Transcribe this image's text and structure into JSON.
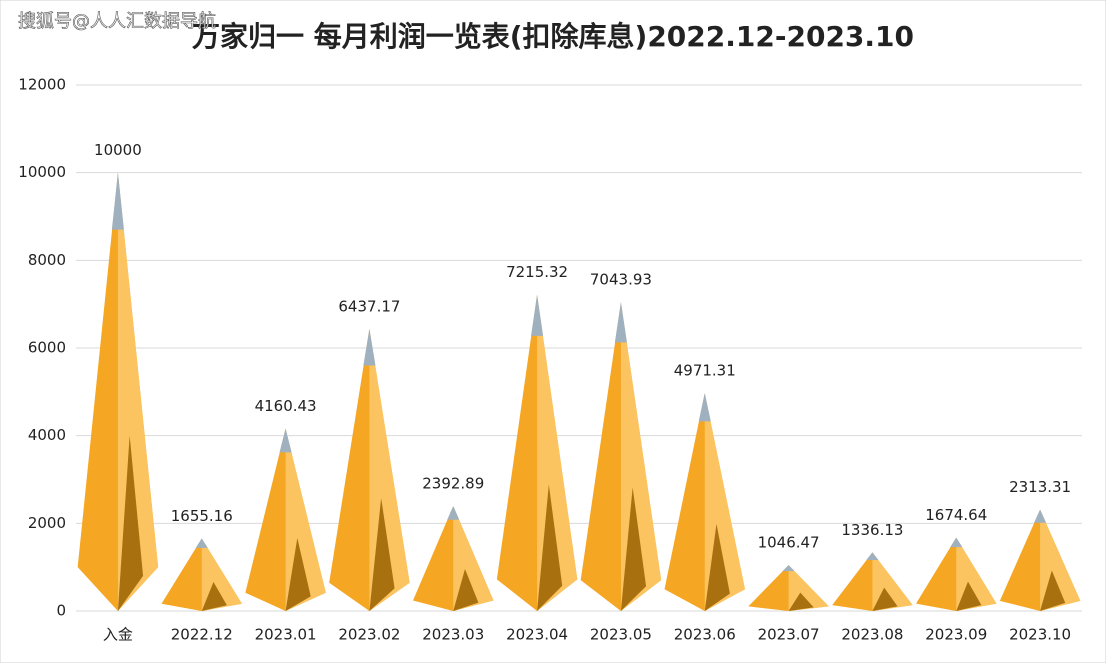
{
  "watermark": "搜狐号@人人汇数据导航",
  "chart_data": {
    "type": "pyramid",
    "title": "万家归一 每月利润一览表(扣除库息)2022.12-2023.10",
    "categories": [
      "入金",
      "2022.12",
      "2023.01",
      "2023.02",
      "2023.03",
      "2023.04",
      "2023.05",
      "2023.06",
      "2023.07",
      "2023.08",
      "2023.09",
      "2023.10"
    ],
    "values": [
      10000,
      1655.16,
      4160.43,
      6437.17,
      2392.89,
      7215.32,
      7043.93,
      4971.31,
      1046.47,
      1336.13,
      1674.64,
      2313.31
    ],
    "color": "#f5a623",
    "ylim": [
      0,
      12000
    ],
    "yticks": [
      0,
      2000,
      4000,
      6000,
      8000,
      10000,
      12000
    ],
    "grid": true
  }
}
